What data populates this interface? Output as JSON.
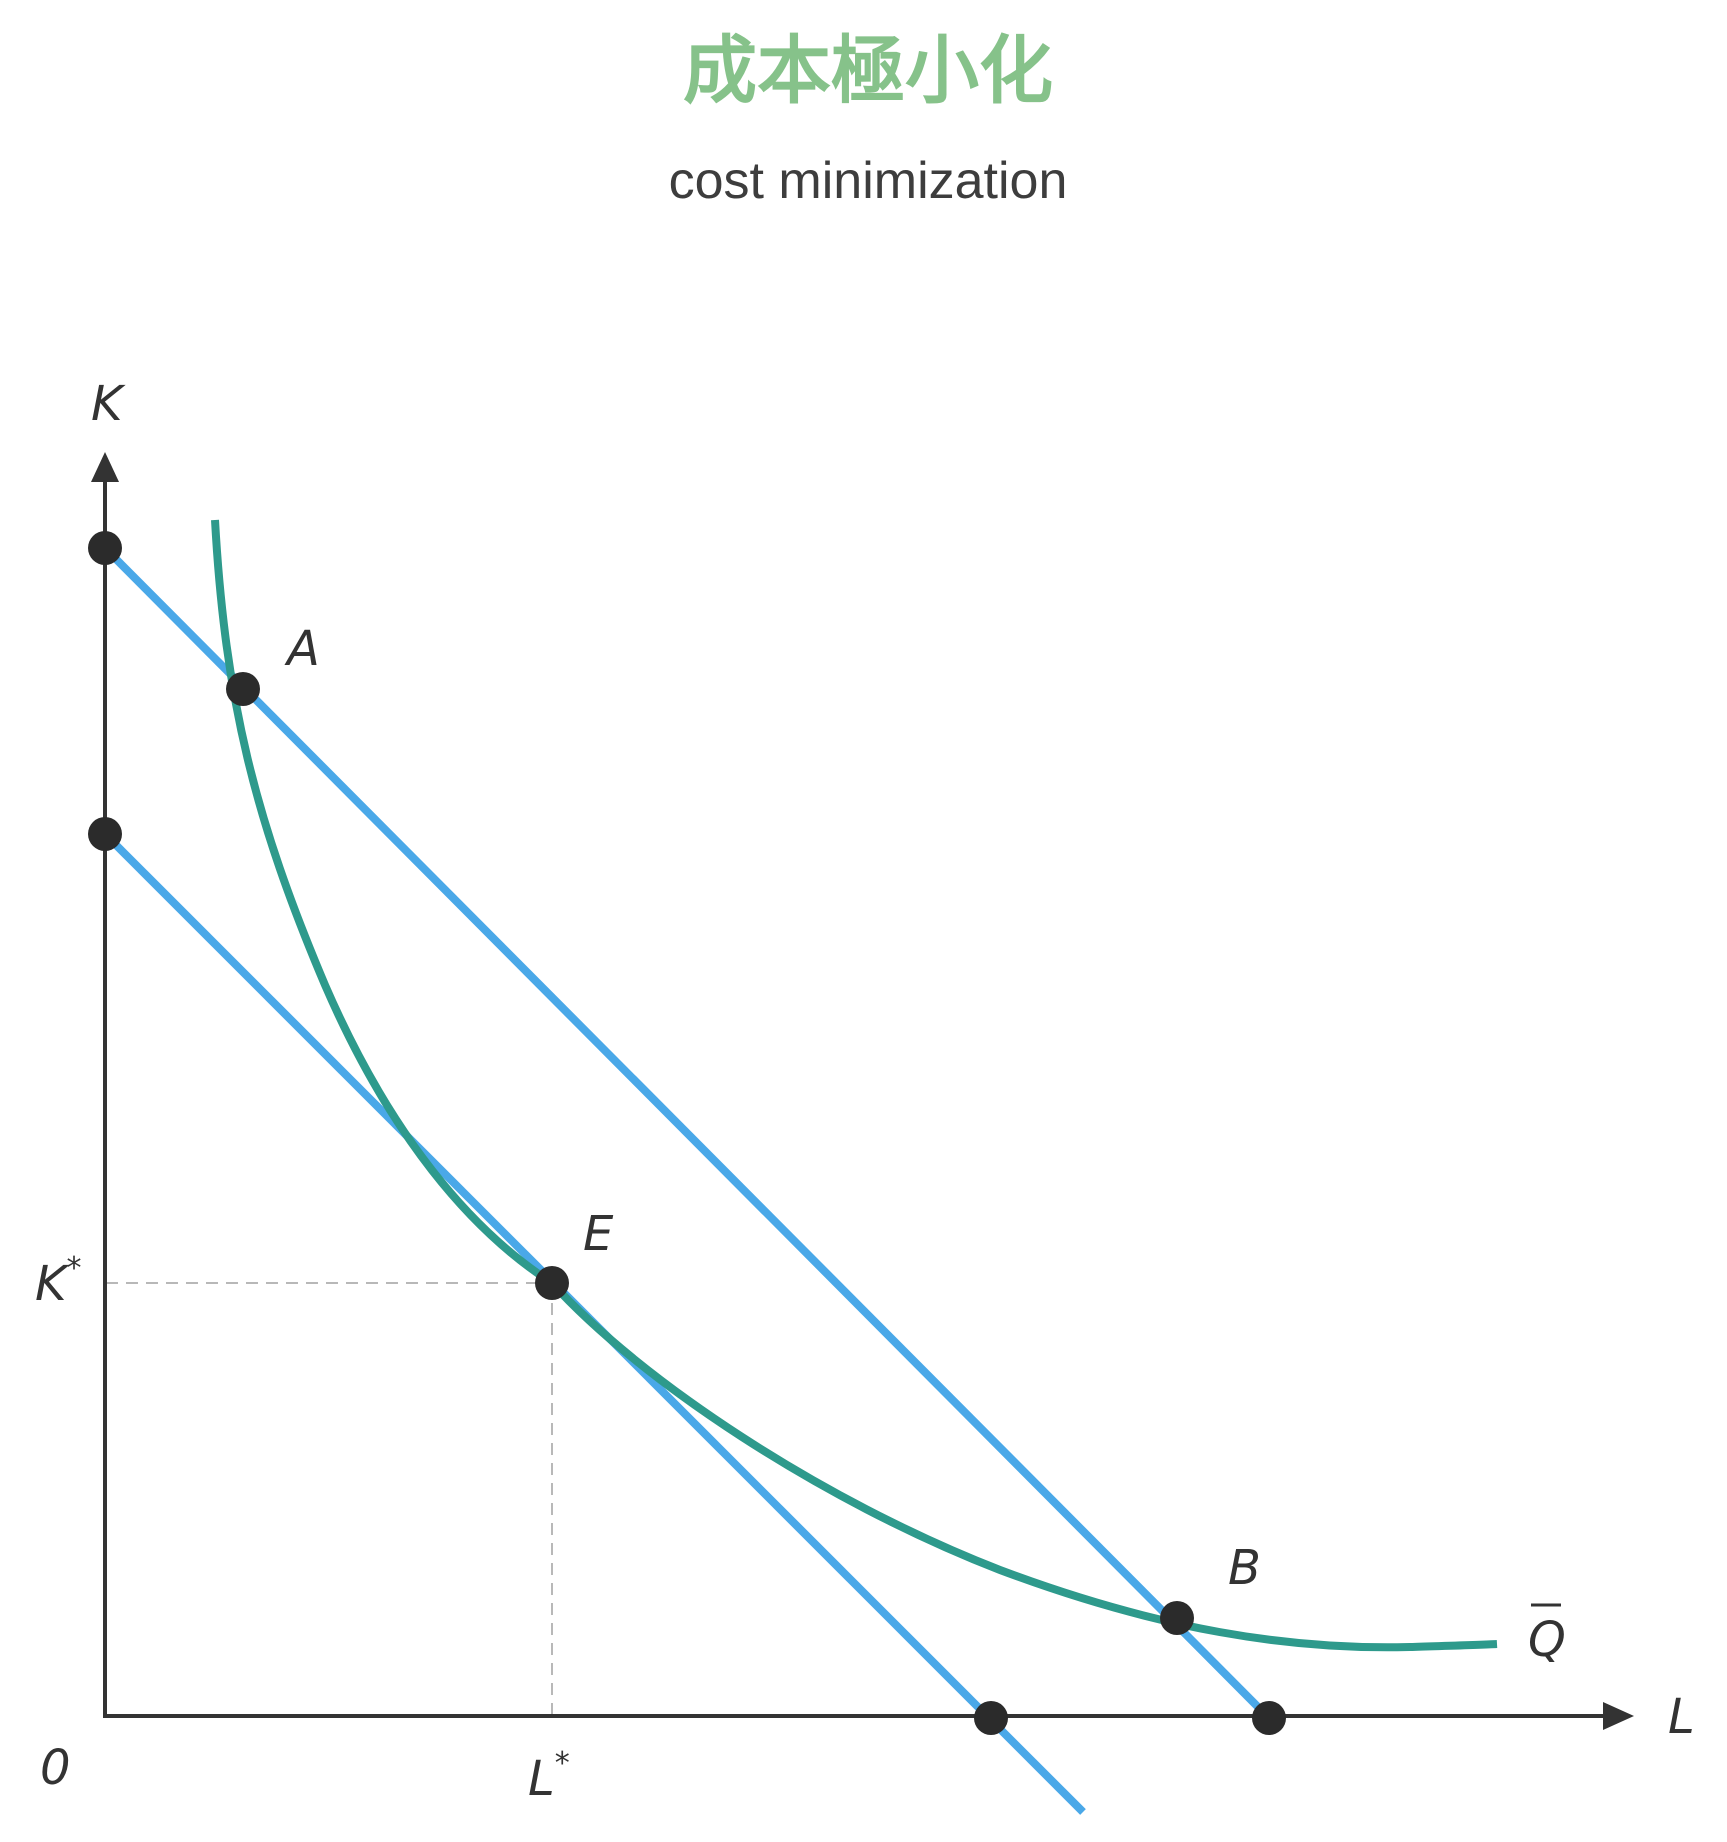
{
  "title": "成本極小化",
  "subtitle": "cost minimization",
  "axes": {
    "y_label": "K",
    "x_label": "L",
    "origin_label": "0"
  },
  "points": {
    "A": "A",
    "B": "B",
    "E": "E"
  },
  "ticks": {
    "k_star_base": "K",
    "l_star_base": "L",
    "star": "*"
  },
  "isoquant_label": "Q",
  "colors": {
    "title": "#86c28a",
    "subtitle": "#3d3d3d",
    "axis": "#333333",
    "isocost": "#4aa8e8",
    "isoquant": "#2e9a8c",
    "dot": "#2b2b2b",
    "guide": "#b8b8b8"
  }
}
